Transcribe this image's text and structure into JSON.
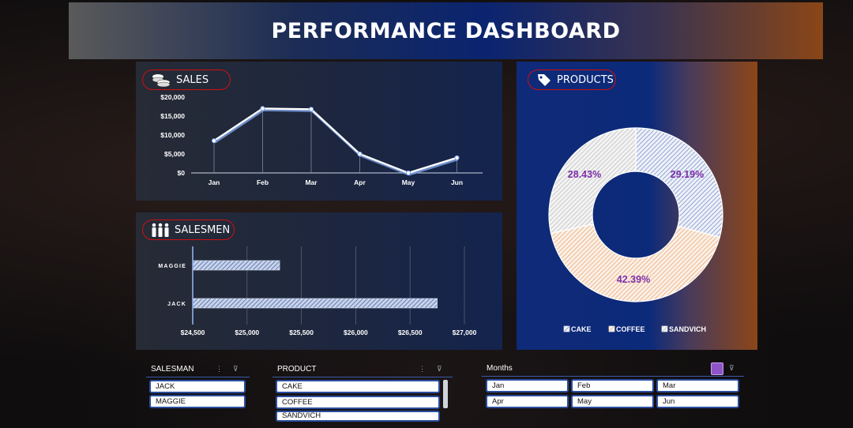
{
  "header": {
    "title": "PERFORMANCE DASHBOARD"
  },
  "sales_panel": {
    "label": "SALES"
  },
  "salesmen_panel": {
    "label": "SALESMEN"
  },
  "products_panel": {
    "label": "PRODUCTS"
  },
  "chart_data": [
    {
      "type": "line",
      "categories": [
        "Jan",
        "Feb",
        "Mar",
        "Apr",
        "May",
        "Jun"
      ],
      "values": [
        8500,
        17000,
        16800,
        5000,
        0,
        4000
      ],
      "ytick_labels": [
        "$0",
        "$5,000",
        "$10,000",
        "$15,000",
        "$20,000"
      ],
      "ylim": [
        0,
        20000
      ],
      "line_color": "#ffffff",
      "shadow_color": "#7ea4e8"
    },
    {
      "type": "bar",
      "orientation": "horizontal",
      "categories": [
        "MAGGIE",
        "JACK"
      ],
      "values": [
        25300,
        26750
      ],
      "xtick_labels": [
        "$24,500",
        "$25,000",
        "$25,500",
        "$26,000",
        "$26,500",
        "$27,000"
      ],
      "xlim": [
        24500,
        27000
      ],
      "bar_color": "#c8d3ea"
    },
    {
      "type": "pie",
      "style": "donut",
      "categories": [
        "SANDVICH",
        "COFFEE",
        "CAKE"
      ],
      "values": [
        28.43,
        42.39,
        29.19
      ],
      "labels": [
        "28.43%",
        "42.39%",
        "29.19%"
      ],
      "legend": [
        "CAKE",
        "COFFEE",
        "SANDVICH"
      ],
      "colors": {
        "CAKE": "#7f9bd8",
        "COFFEE": "#f2b98a",
        "SANDVICH": "#d0d0d0"
      },
      "label_color": "#7b2fa8",
      "legend_position": "bottom"
    }
  ],
  "slicers": {
    "salesman": {
      "title": "SALESMAN",
      "items": [
        "JACK",
        "MAGGIE"
      ]
    },
    "product": {
      "title": "PRODUCT",
      "items": [
        "CAKE",
        "COFFEE",
        "SANDVICH"
      ]
    },
    "months": {
      "title": "Months",
      "items": [
        "Jan",
        "Feb",
        "Mar",
        "Apr",
        "May",
        "Jun"
      ]
    }
  },
  "icons": {
    "sales": "coins-icon",
    "salesmen": "people-icon",
    "products": "tag-icon",
    "clear_filter": "clear-filter-icon",
    "multi_select": "multi-select-icon"
  }
}
